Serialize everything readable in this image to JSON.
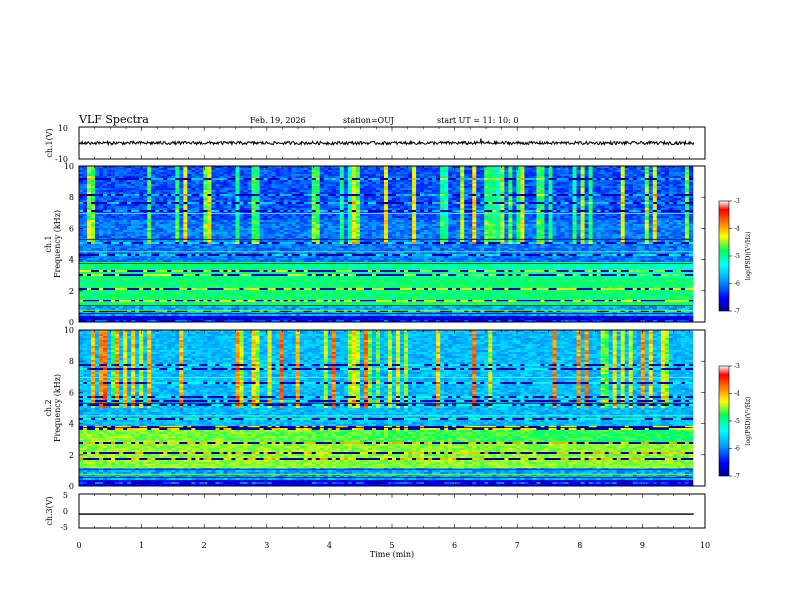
{
  "header": {
    "title": "VLF Spectra",
    "date": "Feb. 19, 2026",
    "station": "station=OUJ",
    "start_ut": "start  UT =   11: 10: 0"
  },
  "colors": {
    "background": "#ffffff",
    "axis": "#000000",
    "spectrogram_low": "#000080",
    "spectrogram_high": "#ff0000"
  },
  "chart_data": [
    {
      "type": "line",
      "panel": "ch1-waveform",
      "ylabel": "ch.1(V)",
      "ylim": [
        -10,
        10
      ],
      "yticks": [
        10,
        -10
      ],
      "xlim": [
        0,
        10
      ],
      "series": [
        {
          "values_band": [
            -1,
            1
          ],
          "color": "#000000"
        }
      ]
    },
    {
      "type": "heatmap",
      "panel": "ch1-spectrogram",
      "ylabel": "Frequency (kHz)",
      "channel_label": "ch.1",
      "ylim": [
        0,
        10
      ],
      "yticks": [
        0,
        2,
        4,
        6,
        8,
        10
      ],
      "xlim": [
        0,
        10
      ],
      "intense_band_khz": [
        1.0,
        3.8
      ],
      "colorbar": {
        "label": "log(PSD)(V²/Hz)",
        "range": [
          -7,
          -3
        ],
        "ticks": [
          -3,
          -4,
          -5,
          -6,
          -7
        ],
        "colors": [
          "#000080",
          "#0000ff",
          "#00a0ff",
          "#00ffff",
          "#00ff60",
          "#ffff00",
          "#ff8000",
          "#ff0000",
          "#ffffff"
        ]
      }
    },
    {
      "type": "heatmap",
      "panel": "ch2-spectrogram",
      "ylabel": "Frequency (kHz)",
      "channel_label": "ch.2",
      "ylim": [
        0,
        10
      ],
      "yticks": [
        0,
        2,
        4,
        6,
        8,
        10
      ],
      "xlim": [
        0,
        10
      ],
      "intense_band_khz": [
        1.2,
        3.8
      ],
      "colorbar": {
        "label": "log(PSD)(V²/Hz)",
        "range": [
          -7,
          -3
        ],
        "ticks": [
          -3,
          -4,
          -5,
          -6,
          -7
        ],
        "colors": [
          "#000080",
          "#0000ff",
          "#00a0ff",
          "#00ffff",
          "#00ff60",
          "#ffff00",
          "#ff8000",
          "#ff0000",
          "#ffffff"
        ]
      }
    },
    {
      "type": "line",
      "panel": "ch3-waveform",
      "ylabel": "ch.3(V)",
      "ylim": [
        -5,
        5
      ],
      "yticks": [
        5,
        0,
        -5
      ],
      "xlim": [
        0,
        10
      ],
      "series": [
        {
          "values_band": [
            -1.1,
            -0.7
          ],
          "color": "#000000"
        }
      ],
      "xlabel": "Time (min)",
      "xticks": [
        0,
        1,
        2,
        3,
        4,
        5,
        6,
        7,
        8,
        9,
        10
      ]
    }
  ]
}
